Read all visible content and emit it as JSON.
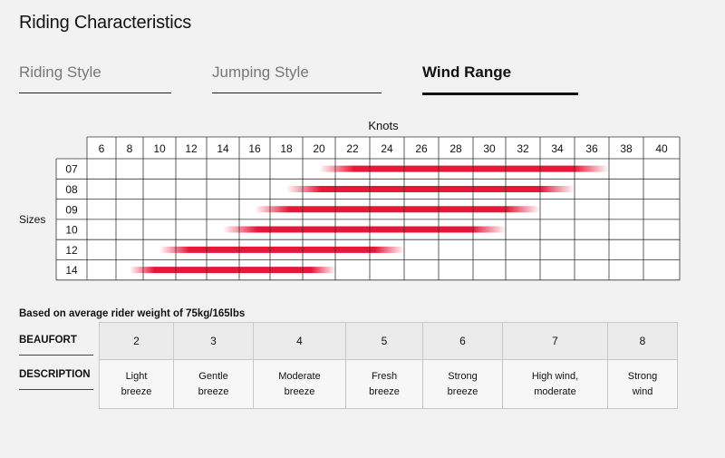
{
  "page_title": "Riding Characteristics",
  "tabs": [
    {
      "label": "Riding Style",
      "active": false
    },
    {
      "label": "Jumping Style",
      "active": false
    },
    {
      "label": "Wind Range",
      "active": true
    }
  ],
  "chart_data": {
    "type": "range-bar",
    "xlabel": "Knots",
    "ylabel": "Sizes",
    "x_ticks": [
      6,
      8,
      10,
      12,
      14,
      16,
      18,
      20,
      22,
      24,
      26,
      28,
      30,
      32,
      34,
      36,
      38,
      40
    ],
    "categories": [
      "07",
      "08",
      "09",
      "10",
      "12",
      "14"
    ],
    "ranges": [
      {
        "size": "07",
        "min": 20,
        "max": 37
      },
      {
        "size": "08",
        "min": 18,
        "max": 35
      },
      {
        "size": "09",
        "min": 16,
        "max": 33
      },
      {
        "size": "10",
        "min": 14,
        "max": 31
      },
      {
        "size": "12",
        "min": 10,
        "max": 25
      },
      {
        "size": "14",
        "min": 8,
        "max": 21
      }
    ],
    "bar_color": "#e8173a",
    "grid": true
  },
  "weight_note": "Based on average rider weight of 75kg/165lbs",
  "beaufort": {
    "beaufort_label": "BEAUFORT",
    "description_label": "DESCRIPTION",
    "levels": [
      {
        "value": "2",
        "desc": [
          "Light",
          "breeze"
        ]
      },
      {
        "value": "3",
        "desc": [
          "Gentle",
          "breeze"
        ]
      },
      {
        "value": "4",
        "desc": [
          "Moderate",
          "breeze"
        ]
      },
      {
        "value": "5",
        "desc": [
          "Fresh",
          "breeze"
        ]
      },
      {
        "value": "6",
        "desc": [
          "Strong",
          "breeze"
        ]
      },
      {
        "value": "7",
        "desc": [
          "High wind,",
          "moderate"
        ]
      },
      {
        "value": "8",
        "desc": [
          "Strong",
          "wind"
        ]
      }
    ]
  }
}
